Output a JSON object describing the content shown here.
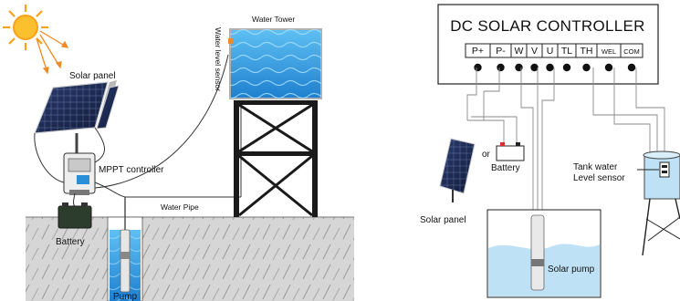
{
  "left": {
    "sun_icon": "sun-icon",
    "labels": {
      "solar_panel": "Solar panel",
      "mppt_controller": "MPPT controller",
      "battery": "Battery",
      "water_tower": "Water Tower",
      "water_level_sensor": "Water  level sensor",
      "water_pipe": "Water Pipe",
      "pump": "Pump"
    }
  },
  "right": {
    "controller": {
      "title": "DC SOLAR CONTROLLER",
      "terminals": [
        "P+",
        "P-",
        "W",
        "V",
        "U",
        "TL",
        "TH",
        "WEL",
        "COM"
      ]
    },
    "labels": {
      "or": "or",
      "battery": "Battery",
      "solar_panel": "Solar panel",
      "tank_sensor_line1": "Tank water",
      "tank_sensor_line2": "Level sensor",
      "solar_pump": "Solar pump"
    }
  },
  "colors": {
    "ground": "#d8d8d8",
    "water": "#3da3e0",
    "sun": "#f7a21b",
    "sun_rays": "#f08a24",
    "panel": "#1d2a52",
    "frame": "#1a1a1a",
    "well_water": "#bfe1f5"
  }
}
